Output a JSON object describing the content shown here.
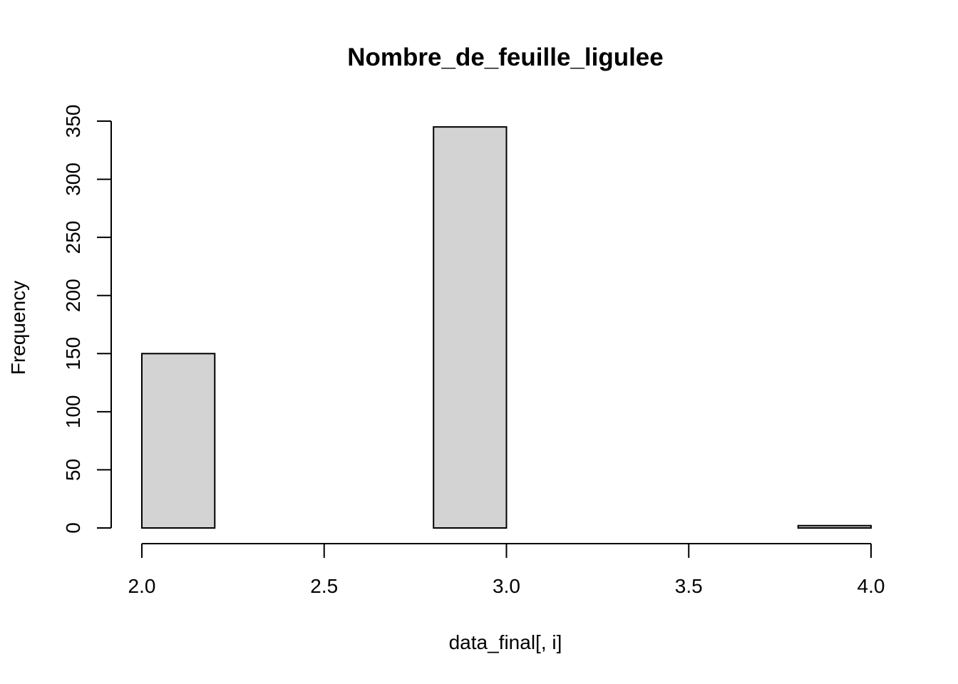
{
  "chart_data": {
    "type": "bar",
    "title": "Nombre_de_feuille_ligulee",
    "xlabel": "data_final[, i]",
    "ylabel": "Frequency",
    "bins": [
      {
        "x0": 2.0,
        "x1": 2.2,
        "count": 150
      },
      {
        "x0": 2.2,
        "x1": 2.4,
        "count": 0
      },
      {
        "x0": 2.4,
        "x1": 2.6,
        "count": 0
      },
      {
        "x0": 2.6,
        "x1": 2.8,
        "count": 0
      },
      {
        "x0": 2.8,
        "x1": 3.0,
        "count": 345
      },
      {
        "x0": 3.0,
        "x1": 3.2,
        "count": 0
      },
      {
        "x0": 3.2,
        "x1": 3.4,
        "count": 0
      },
      {
        "x0": 3.4,
        "x1": 3.6,
        "count": 0
      },
      {
        "x0": 3.6,
        "x1": 3.8,
        "count": 0
      },
      {
        "x0": 3.8,
        "x1": 4.0,
        "count": 2
      }
    ],
    "x_ticks": [
      2.0,
      2.5,
      3.0,
      3.5,
      4.0
    ],
    "x_tick_labels": [
      "2.0",
      "2.5",
      "3.0",
      "3.5",
      "4.0"
    ],
    "y_ticks": [
      0,
      50,
      100,
      150,
      200,
      250,
      300,
      350
    ],
    "y_tick_labels": [
      "0",
      "50",
      "100",
      "150",
      "200",
      "250",
      "300",
      "350"
    ],
    "xlim": [
      2.0,
      4.0
    ],
    "ylim": [
      0,
      350
    ],
    "grid": false,
    "bar_color": "#d3d3d3",
    "edge_color": "#000000"
  }
}
